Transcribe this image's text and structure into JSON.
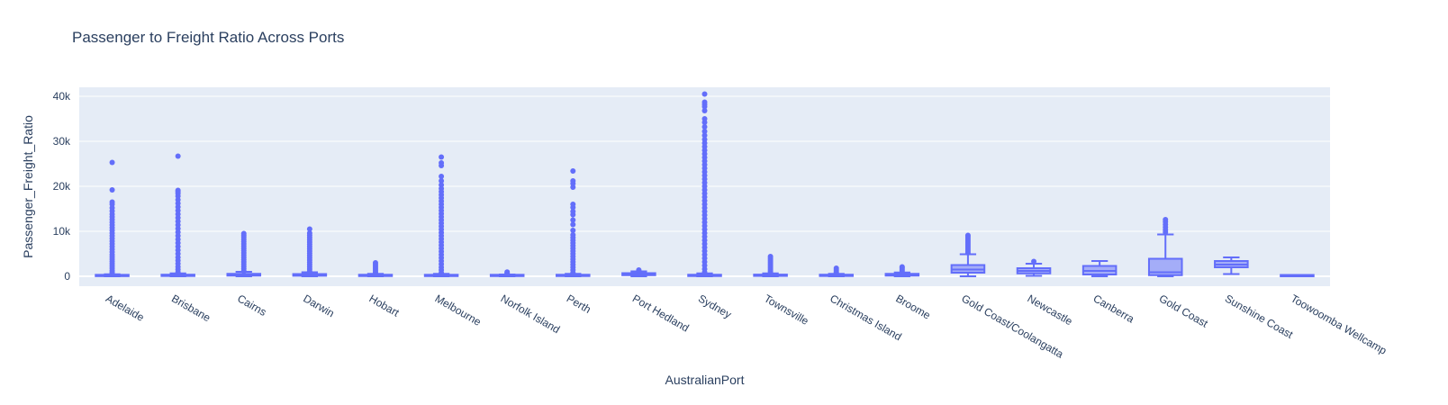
{
  "chart_data": {
    "type": "box",
    "title": "Passenger to Freight Ratio Across Ports",
    "xlabel": "AustralianPort",
    "ylabel": "Passenger_Freight_Ratio",
    "ylim": [
      -2200,
      42000
    ],
    "y_ticks": [
      {
        "value": 0,
        "label": "0"
      },
      {
        "value": 10000,
        "label": "10k"
      },
      {
        "value": 20000,
        "label": "20k"
      },
      {
        "value": 30000,
        "label": "30k"
      },
      {
        "value": 40000,
        "label": "40k"
      }
    ],
    "grid": true,
    "colors": {
      "box": "#636efa",
      "plot_bg": "#e5ecf6",
      "grid": "#ffffff",
      "text": "#2a3f5f"
    },
    "categories": [
      "Adelaide",
      "Brisbane",
      "Cairns",
      "Darwin",
      "Hobart",
      "Melbourne",
      "Norfolk Island",
      "Perth",
      "Port Hedland",
      "Sydney",
      "Townsville",
      "Christmas Island",
      "Broome",
      "Gold Coast/Coolangatta",
      "Newcastle",
      "Canberra",
      "Gold Coast",
      "Sunshine Coast",
      "Toowoomba Wellcamp"
    ],
    "boxes": [
      {
        "category": "Adelaide",
        "min": 0,
        "q1": 30,
        "median": 90,
        "q3": 200,
        "max": 450,
        "outliers": [
          600,
          900,
          1300,
          1800,
          2300,
          2800,
          3300,
          3800,
          4300,
          4800,
          5400,
          6000,
          6600,
          7200,
          7800,
          8400,
          9000,
          9600,
          10200,
          10800,
          11400,
          12000,
          12600,
          13200,
          13800,
          14500,
          15200,
          16000,
          16500,
          19200,
          25300
        ]
      },
      {
        "category": "Brisbane",
        "min": 0,
        "q1": 60,
        "median": 150,
        "q3": 300,
        "max": 650,
        "outliers": [
          900,
          1500,
          2100,
          2800,
          3500,
          4200,
          5000,
          5800,
          6600,
          7400,
          8200,
          9000,
          9800,
          10600,
          11400,
          12200,
          13000,
          13800,
          14600,
          15400,
          16200,
          17000,
          17800,
          18400,
          18800,
          19100,
          26700
        ]
      },
      {
        "category": "Cairns",
        "min": 0,
        "q1": 150,
        "median": 300,
        "q3": 550,
        "max": 1000,
        "outliers": [
          1200,
          1700,
          2200,
          2700,
          3200,
          3700,
          4200,
          4700,
          5200,
          5700,
          6200,
          6700,
          7200,
          7700,
          8200,
          8700,
          9100,
          9500
        ]
      },
      {
        "category": "Darwin",
        "min": 0,
        "q1": 120,
        "median": 280,
        "q3": 500,
        "max": 900,
        "outliers": [
          1100,
          1600,
          2100,
          2600,
          3100,
          3600,
          4100,
          4600,
          5100,
          5600,
          6100,
          6600,
          7100,
          7600,
          8100,
          8600,
          9100,
          9600,
          10500
        ]
      },
      {
        "category": "Hobart",
        "min": 0,
        "q1": 50,
        "median": 130,
        "q3": 280,
        "max": 550,
        "outliers": [
          700,
          1000,
          1400,
          1800,
          2200,
          2600,
          3000
        ]
      },
      {
        "category": "Melbourne",
        "min": 0,
        "q1": 40,
        "median": 110,
        "q3": 250,
        "max": 550,
        "outliers": [
          800,
          1400,
          2000,
          2700,
          3400,
          4100,
          4800,
          5500,
          6200,
          6900,
          7600,
          8300,
          9000,
          9700,
          10400,
          11100,
          11800,
          12500,
          13200,
          13900,
          14600,
          15300,
          16000,
          16700,
          17400,
          18100,
          18800,
          19500,
          20300,
          21200,
          22200,
          24600,
          25200,
          26500
        ]
      },
      {
        "category": "Norfolk Island",
        "min": 0,
        "q1": 40,
        "median": 100,
        "q3": 200,
        "max": 400,
        "outliers": [
          550,
          750,
          950
        ]
      },
      {
        "category": "Perth",
        "min": 0,
        "q1": 50,
        "median": 120,
        "q3": 260,
        "max": 550,
        "outliers": [
          800,
          1400,
          2000,
          2600,
          3200,
          3800,
          4400,
          5000,
          5600,
          6200,
          6800,
          7400,
          8000,
          8600,
          9200,
          10200,
          11500,
          12500,
          13700,
          14400,
          15300,
          16000,
          19800,
          20600,
          21200,
          23400
        ]
      },
      {
        "category": "Port Hedland",
        "min": 0,
        "q1": 250,
        "median": 450,
        "q3": 700,
        "max": 1100,
        "outliers": [
          1250,
          1400
        ]
      },
      {
        "category": "Sydney",
        "min": 0,
        "q1": 50,
        "median": 130,
        "q3": 300,
        "max": 650,
        "outliers": [
          900,
          1600,
          2400,
          3200,
          4000,
          4800,
          5600,
          6400,
          7200,
          8000,
          8800,
          9600,
          10400,
          11200,
          12000,
          12800,
          13600,
          14400,
          15200,
          16000,
          16800,
          17600,
          18400,
          19200,
          20000,
          20800,
          21600,
          22400,
          23200,
          24000,
          24800,
          25600,
          26400,
          27200,
          28000,
          28800,
          29600,
          30400,
          31300,
          32200,
          33200,
          34200,
          35000,
          36800,
          37700,
          38200,
          38700,
          40500
        ]
      },
      {
        "category": "Townsville",
        "min": 0,
        "q1": 80,
        "median": 180,
        "q3": 330,
        "max": 650,
        "outliers": [
          850,
          1200,
          1600,
          2000,
          2400,
          2800,
          3200,
          3600,
          4000,
          4400
        ]
      },
      {
        "category": "Christmas Island",
        "min": 0,
        "q1": 60,
        "median": 140,
        "q3": 280,
        "max": 550,
        "outliers": [
          750,
          1000,
          1400,
          1800
        ]
      },
      {
        "category": "Broome",
        "min": 0,
        "q1": 150,
        "median": 320,
        "q3": 550,
        "max": 850,
        "outliers": [
          1000,
          1300,
          1600,
          1900,
          2100
        ]
      },
      {
        "category": "Gold Coast/Coolangatta",
        "min": 0,
        "q1": 800,
        "median": 1500,
        "q3": 2500,
        "max": 4900,
        "outliers": [
          5200,
          5600,
          6000,
          6400,
          6800,
          7200,
          7600,
          8000,
          8400,
          8800,
          9100
        ]
      },
      {
        "category": "Newcastle",
        "min": 100,
        "q1": 650,
        "median": 1200,
        "q3": 1800,
        "max": 2800,
        "outliers": [
          3300
        ]
      },
      {
        "category": "Canberra",
        "min": 0,
        "q1": 400,
        "median": 1200,
        "q3": 2300,
        "max": 3400,
        "outliers": []
      },
      {
        "category": "Gold Coast",
        "min": 0,
        "q1": 250,
        "median": 900,
        "q3": 3900,
        "max": 9300,
        "outliers": [
          9800,
          10300,
          10900,
          11500,
          12100,
          12600
        ]
      },
      {
        "category": "Sunshine Coast",
        "min": 500,
        "q1": 2000,
        "median": 2600,
        "q3": 3400,
        "max": 4200,
        "outliers": []
      },
      {
        "category": "Toowoomba Wellcamp",
        "min": 0,
        "q1": 0,
        "median": 0,
        "q3": 0,
        "max": 0,
        "outliers": []
      }
    ]
  }
}
